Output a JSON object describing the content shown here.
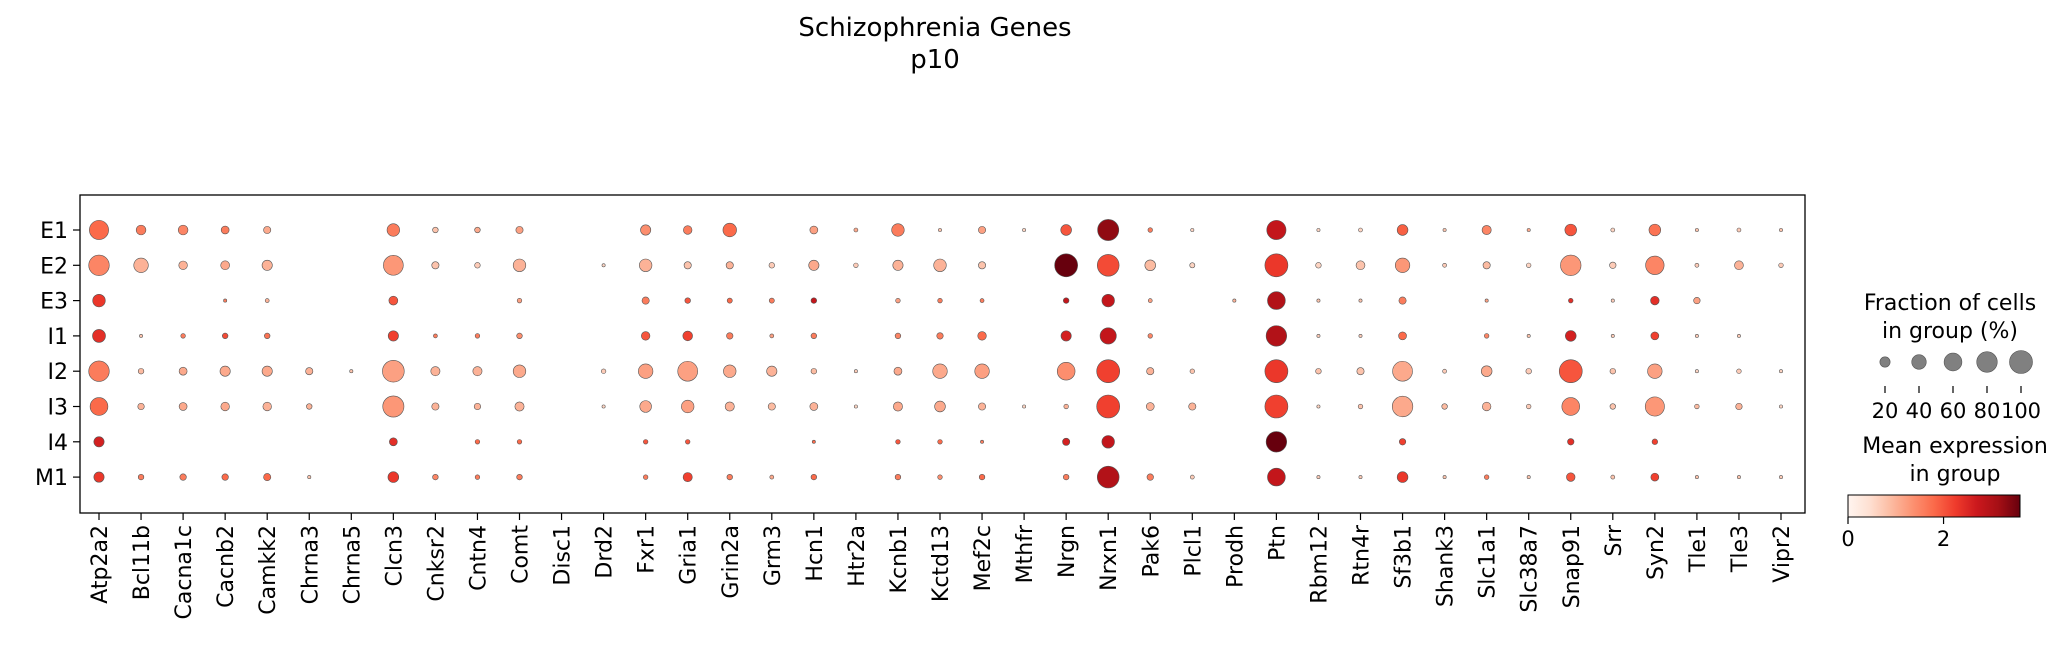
{
  "chart_data": {
    "type": "dotplot",
    "title": "Schizophrenia Genes",
    "subtitle": "p10",
    "genes": [
      "Atp2a2",
      "Bcl11b",
      "Cacna1c",
      "Cacnb2",
      "Camkk2",
      "Chrna3",
      "Chrna5",
      "Clcn3",
      "Cnksr2",
      "Cntn4",
      "Comt",
      "Disc1",
      "Drd2",
      "Fxr1",
      "Gria1",
      "Grin2a",
      "Grm3",
      "Hcn1",
      "Htr2a",
      "Kcnb1",
      "Kctd13",
      "Mef2c",
      "Mthfr",
      "Nrgn",
      "Nrxn1",
      "Pak6",
      "Plcl1",
      "Prodh",
      "Ptn",
      "Rbm12",
      "Rtn4r",
      "Sf3b1",
      "Shank3",
      "Slc1a1",
      "Slc38a7",
      "Snap91",
      "Srr",
      "Syn2",
      "Tle1",
      "Tle3",
      "Vipr2"
    ],
    "groups": [
      "E1",
      "E2",
      "E3",
      "I1",
      "I2",
      "I3",
      "I4",
      "M1"
    ],
    "fraction": [
      [
        70,
        18,
        18,
        12,
        10,
        0,
        0,
        30,
        6,
        6,
        10,
        0,
        0,
        20,
        14,
        35,
        0,
        12,
        3,
        30,
        2,
        10,
        2,
        22,
        85,
        4,
        2,
        0,
        70,
        2,
        3,
        22,
        2,
        16,
        2,
        26,
        3,
        26,
        2,
        3,
        2
      ],
      [
        80,
        40,
        14,
        15,
        20,
        0,
        0,
        75,
        10,
        6,
        30,
        0,
        2,
        30,
        10,
        10,
        6,
        20,
        4,
        20,
        30,
        10,
        0,
        100,
        90,
        22,
        5,
        0,
        100,
        6,
        15,
        40,
        3,
        10,
        4,
        80,
        8,
        65,
        3,
        15,
        4
      ],
      [
        30,
        0,
        0,
        2,
        3,
        0,
        0,
        15,
        0,
        0,
        4,
        0,
        0,
        10,
        6,
        5,
        5,
        6,
        0,
        4,
        4,
        3,
        0,
        6,
        30,
        3,
        0,
        2,
        60,
        2,
        2,
        10,
        0,
        2,
        0,
        4,
        2,
        14,
        8,
        0,
        0
      ],
      [
        32,
        2,
        4,
        6,
        6,
        0,
        0,
        20,
        3,
        4,
        6,
        0,
        0,
        14,
        18,
        8,
        3,
        6,
        0,
        6,
        8,
        14,
        0,
        20,
        50,
        4,
        0,
        0,
        80,
        2,
        2,
        12,
        0,
        4,
        2,
        22,
        2,
        12,
        2,
        2,
        0
      ],
      [
        80,
        6,
        12,
        20,
        20,
        10,
        2,
        90,
        16,
        16,
        30,
        0,
        4,
        40,
        75,
        30,
        20,
        6,
        2,
        12,
        40,
        40,
        0,
        60,
        100,
        10,
        4,
        0,
        100,
        6,
        10,
        75,
        3,
        22,
        6,
        100,
        6,
        40,
        2,
        4,
        2
      ],
      [
        60,
        8,
        12,
        14,
        14,
        6,
        0,
        85,
        10,
        8,
        16,
        0,
        2,
        26,
        30,
        16,
        10,
        12,
        2,
        16,
        22,
        10,
        2,
        4,
        100,
        12,
        10,
        0,
        100,
        2,
        4,
        80,
        6,
        14,
        4,
        60,
        6,
        70,
        4,
        8,
        2
      ],
      [
        20,
        0,
        0,
        0,
        0,
        0,
        0,
        12,
        0,
        4,
        4,
        0,
        0,
        4,
        4,
        0,
        0,
        2,
        0,
        4,
        4,
        2,
        0,
        10,
        30,
        0,
        0,
        0,
        80,
        0,
        0,
        8,
        0,
        0,
        0,
        8,
        0,
        6,
        0,
        0,
        0
      ],
      [
        20,
        6,
        8,
        8,
        10,
        2,
        0,
        22,
        6,
        4,
        6,
        0,
        0,
        4,
        16,
        6,
        3,
        6,
        0,
        6,
        4,
        6,
        0,
        6,
        90,
        8,
        3,
        0,
        60,
        2,
        2,
        22,
        2,
        4,
        2,
        14,
        3,
        12,
        2,
        2,
        2
      ]
    ],
    "mean_expression": [
      [
        1.8,
        1.6,
        1.5,
        1.6,
        1.1,
        0,
        0,
        1.6,
        0.8,
        1.1,
        1.2,
        0,
        0,
        1.4,
        1.6,
        1.8,
        0,
        1.2,
        1.1,
        1.6,
        0.8,
        1.2,
        0.6,
        2.0,
        3.3,
        1.6,
        0.6,
        0,
        2.8,
        0.6,
        0.6,
        1.9,
        0.8,
        1.5,
        1.1,
        2.0,
        0.6,
        1.7,
        0.8,
        0.7,
        0.8
      ],
      [
        1.5,
        1.0,
        1.0,
        1.1,
        1.0,
        0,
        0,
        1.3,
        0.8,
        0.7,
        1.0,
        0,
        0.6,
        1.0,
        0.8,
        1.0,
        0.7,
        1.1,
        0.7,
        1.0,
        1.0,
        0.8,
        0,
        3.6,
        2.1,
        0.9,
        0.6,
        0,
        2.3,
        0.6,
        0.8,
        1.3,
        0.7,
        0.9,
        0.6,
        1.3,
        0.7,
        1.5,
        0.7,
        1.0,
        0.7
      ],
      [
        2.3,
        0,
        0,
        1.6,
        1.0,
        0,
        0,
        2.0,
        0,
        0,
        1.2,
        0,
        0,
        1.6,
        2.0,
        1.8,
        1.6,
        2.8,
        0,
        1.2,
        1.6,
        1.6,
        0,
        2.8,
        2.8,
        1.2,
        0,
        1.0,
        3.0,
        0.8,
        0.8,
        1.6,
        0,
        1.2,
        0,
        2.4,
        0.7,
        2.4,
        1.2,
        0,
        0
      ],
      [
        2.4,
        0.8,
        1.6,
        2.1,
        1.7,
        0,
        0,
        2.2,
        1.6,
        1.6,
        1.4,
        0,
        0,
        2.0,
        2.2,
        1.6,
        1.2,
        1.6,
        0,
        1.5,
        1.6,
        1.8,
        0,
        2.6,
        2.8,
        1.5,
        0,
        0,
        3.0,
        0.7,
        0.7,
        1.8,
        0,
        1.5,
        0.8,
        2.6,
        0.7,
        2.2,
        0.7,
        0.7,
        0
      ],
      [
        1.6,
        0.9,
        1.1,
        1.1,
        1.1,
        1.0,
        0.8,
        1.2,
        1.0,
        1.0,
        1.1,
        0,
        0.7,
        1.2,
        1.2,
        1.1,
        1.0,
        0.9,
        0.7,
        1.1,
        1.1,
        1.2,
        0,
        1.4,
        2.2,
        1.0,
        0.8,
        0,
        2.3,
        0.8,
        0.8,
        1.1,
        0.7,
        1.1,
        0.7,
        2.0,
        0.8,
        1.2,
        0.6,
        0.7,
        0.6
      ],
      [
        1.8,
        1.0,
        1.1,
        1.1,
        1.0,
        1.0,
        0,
        1.3,
        1.0,
        1.0,
        1.0,
        0,
        0.6,
        1.1,
        1.2,
        1.0,
        0.9,
        1.0,
        0.6,
        1.1,
        1.1,
        1.0,
        0.6,
        1.0,
        2.2,
        1.0,
        1.0,
        0,
        2.2,
        0.6,
        0.8,
        1.1,
        0.9,
        1.0,
        0.7,
        1.5,
        0.8,
        1.3,
        0.9,
        1.0,
        0.6
      ],
      [
        2.6,
        0,
        0,
        0,
        0,
        0,
        0,
        2.4,
        0,
        1.8,
        1.8,
        0,
        0,
        2.0,
        2.0,
        0,
        0,
        1.8,
        0,
        2.0,
        1.8,
        1.6,
        0,
        2.6,
        2.8,
        0,
        0,
        0,
        3.6,
        0,
        0,
        2.2,
        0,
        0,
        0,
        2.4,
        0,
        2.2,
        0,
        0,
        0
      ],
      [
        2.3,
        1.6,
        1.6,
        1.8,
        1.8,
        0.8,
        0,
        2.3,
        1.5,
        1.6,
        1.6,
        0,
        0,
        1.6,
        2.2,
        1.6,
        1.1,
        1.8,
        0,
        1.6,
        1.4,
        1.8,
        0,
        1.6,
        3.0,
        1.6,
        0.7,
        0,
        2.8,
        0.7,
        0.7,
        2.3,
        0.8,
        1.6,
        0.8,
        2.0,
        0.8,
        2.2,
        0.8,
        0.8,
        0.7
      ]
    ],
    "size_legend": {
      "title_line1": "Fraction of cells",
      "title_line2": "in group (%)",
      "values": [
        20,
        40,
        60,
        80,
        100
      ],
      "labels": [
        "20",
        "40",
        "60",
        "80",
        "100"
      ]
    },
    "color_legend": {
      "title_line1": "Mean expression",
      "title_line2": "in group",
      "range": [
        0,
        3.6
      ],
      "ticks": [
        0,
        2
      ],
      "tick_labels": [
        "0",
        "2"
      ],
      "colors": [
        "#fff5f0",
        "#fee0d2",
        "#fcbba1",
        "#fc9272",
        "#fb6a4a",
        "#ef3b2c",
        "#cb181d",
        "#a50f15",
        "#67000d"
      ]
    },
    "grid": false
  }
}
